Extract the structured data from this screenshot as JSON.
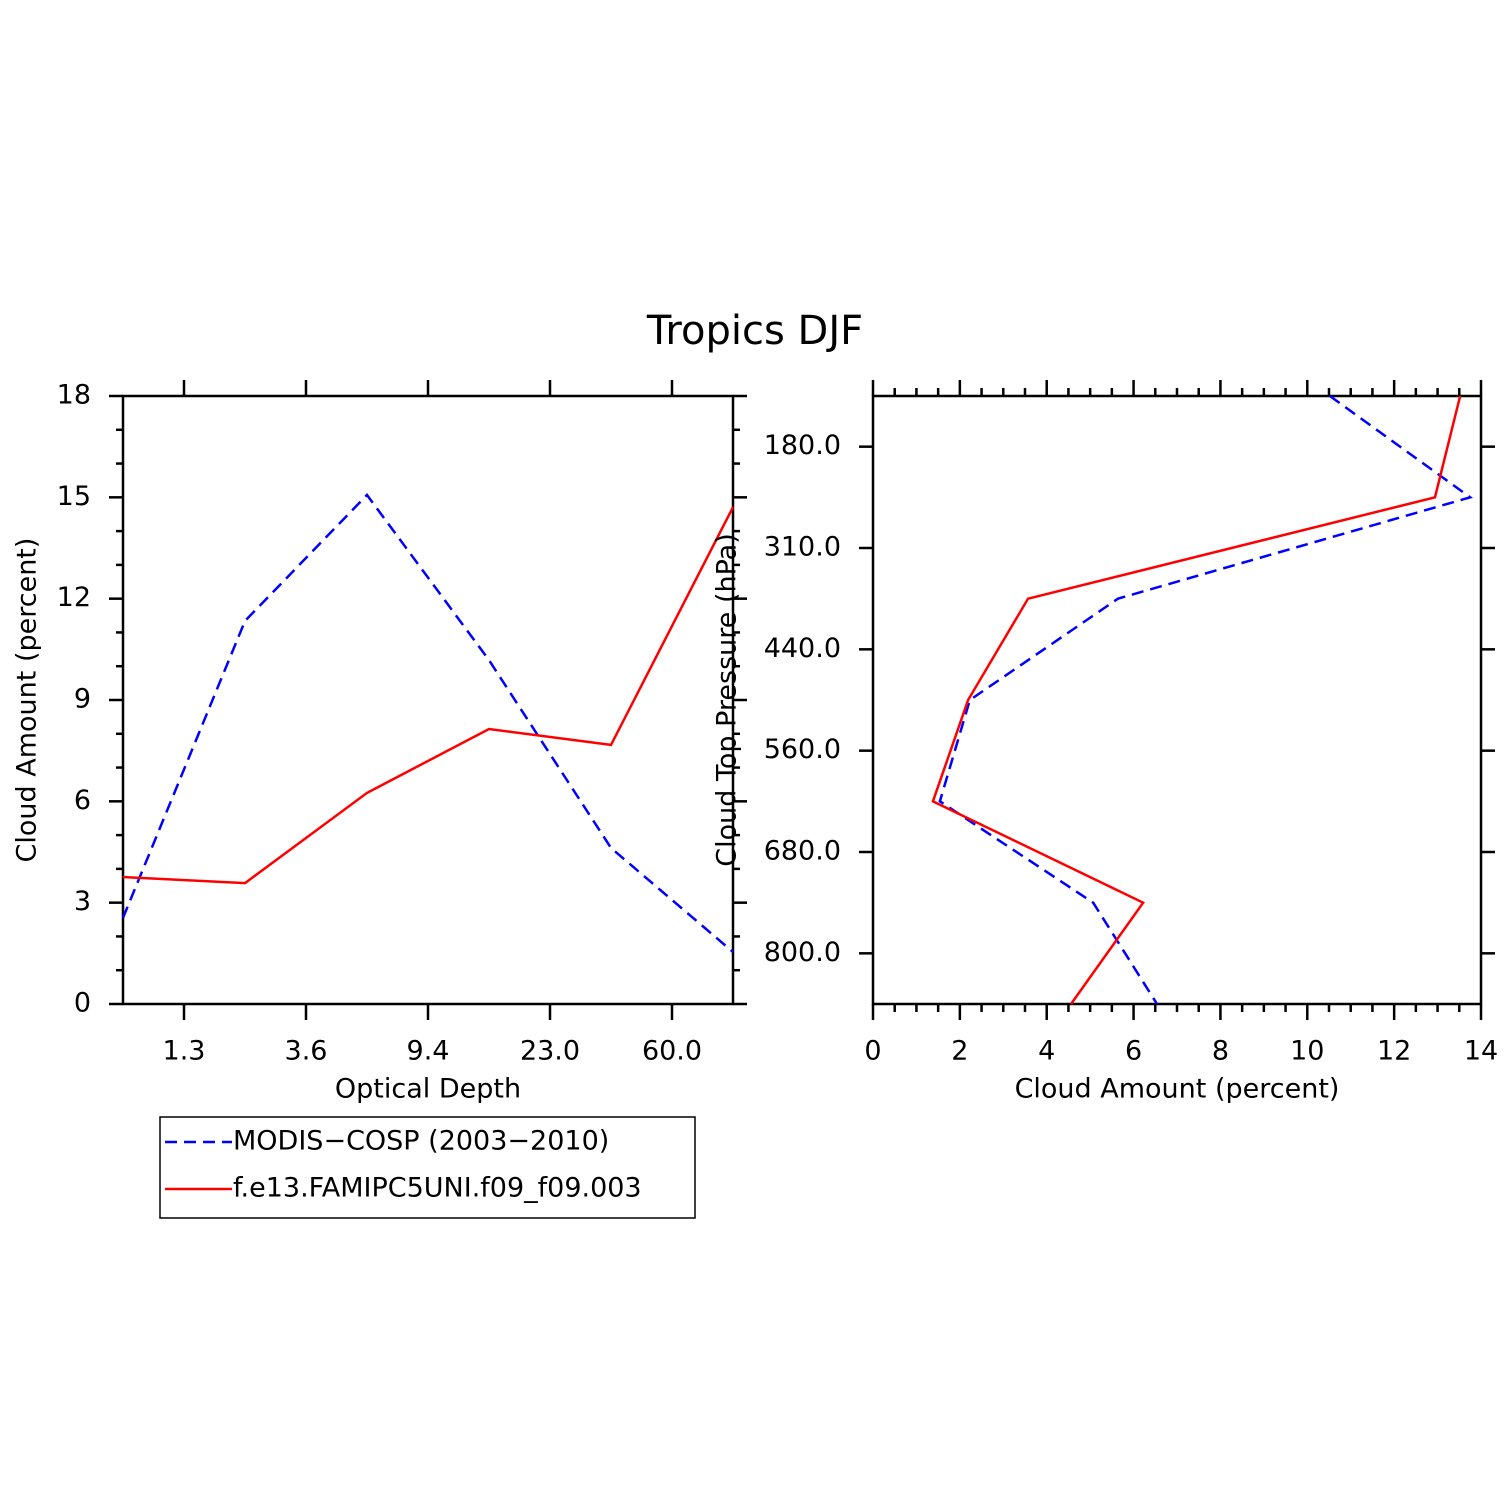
{
  "title": "Tropics DJF",
  "chart_data": [
    {
      "type": "line",
      "xlabel": "Optical Depth",
      "ylabel": "Cloud Amount (percent)",
      "x": [
        0,
        1,
        2,
        3,
        4,
        5
      ],
      "xlim": [
        0,
        5
      ],
      "xticks": [
        {
          "value": 0.5,
          "label": "1.3"
        },
        {
          "value": 1.5,
          "label": "3.6"
        },
        {
          "value": 2.5,
          "label": "9.4"
        },
        {
          "value": 3.5,
          "label": "23.0"
        },
        {
          "value": 4.5,
          "label": "60.0"
        }
      ],
      "ylim": [
        0,
        18
      ],
      "yticks": [
        0,
        3,
        6,
        9,
        12,
        15,
        18
      ],
      "series": [
        {
          "name": "MODIS−COSP (2003−2010)",
          "color": "#0000ff",
          "dash": true,
          "values": [
            2.55,
            11.34,
            15.07,
            10.18,
            4.62,
            1.54
          ]
        },
        {
          "name": "f.e13.FAMIPC5UNI.f09_f09.003",
          "color": "#ff0000",
          "dash": false,
          "values": [
            3.76,
            3.58,
            6.25,
            8.14,
            7.67,
            14.71
          ]
        }
      ]
    },
    {
      "type": "line",
      "orientation": "horizontal",
      "xlabel": "Cloud Amount (percent)",
      "ylabel": "Cloud Top Pressure (hPa)",
      "y": [
        0,
        1,
        2,
        3,
        4,
        5,
        6
      ],
      "ylim": [
        0,
        6
      ],
      "yreverse": true,
      "yticks": [
        {
          "value": 0.5,
          "label": "180.0"
        },
        {
          "value": 1.5,
          "label": "310.0"
        },
        {
          "value": 2.5,
          "label": "440.0"
        },
        {
          "value": 3.5,
          "label": "560.0"
        },
        {
          "value": 4.5,
          "label": "680.0"
        },
        {
          "value": 5.5,
          "label": "800.0"
        }
      ],
      "xlim": [
        0,
        14
      ],
      "xticks": [
        0,
        2,
        4,
        6,
        8,
        10,
        12,
        14
      ],
      "series": [
        {
          "color": "#0000ff",
          "dash": true,
          "values": [
            10.52,
            13.75,
            5.64,
            2.23,
            1.54,
            5.07,
            6.54
          ]
        },
        {
          "color": "#ff0000",
          "dash": false,
          "values": [
            13.52,
            12.94,
            3.57,
            2.19,
            1.38,
            6.22,
            4.56
          ]
        }
      ]
    }
  ]
}
